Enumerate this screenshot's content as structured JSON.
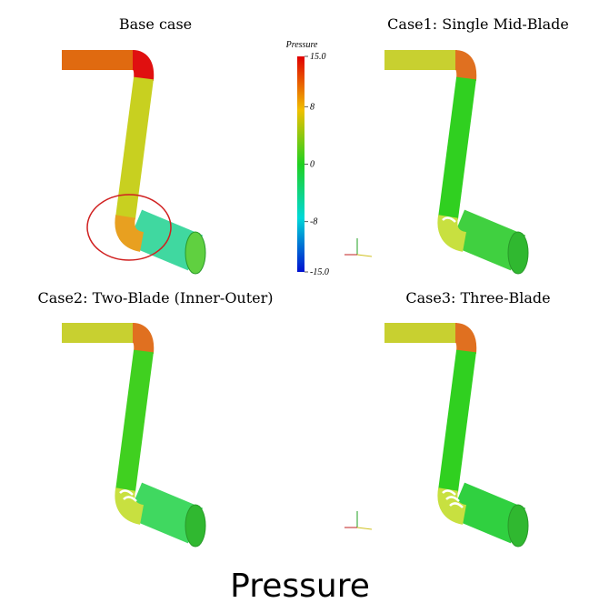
{
  "panels": [
    {
      "title": "Base case"
    },
    {
      "title": "Case1: Single Mid-Blade"
    },
    {
      "title": "Case2: Two-Blade (Inner-Outer)"
    },
    {
      "title": "Case3: Three-Blade"
    }
  ],
  "colorbar": {
    "title": "Pressure",
    "range": [
      -15,
      15
    ],
    "ticks": [
      {
        "value": 15,
        "label": "15.0"
      },
      8,
      0,
      -8,
      {
        "value": -15,
        "label": "-15.0"
      }
    ]
  },
  "caption": "Pressure"
}
